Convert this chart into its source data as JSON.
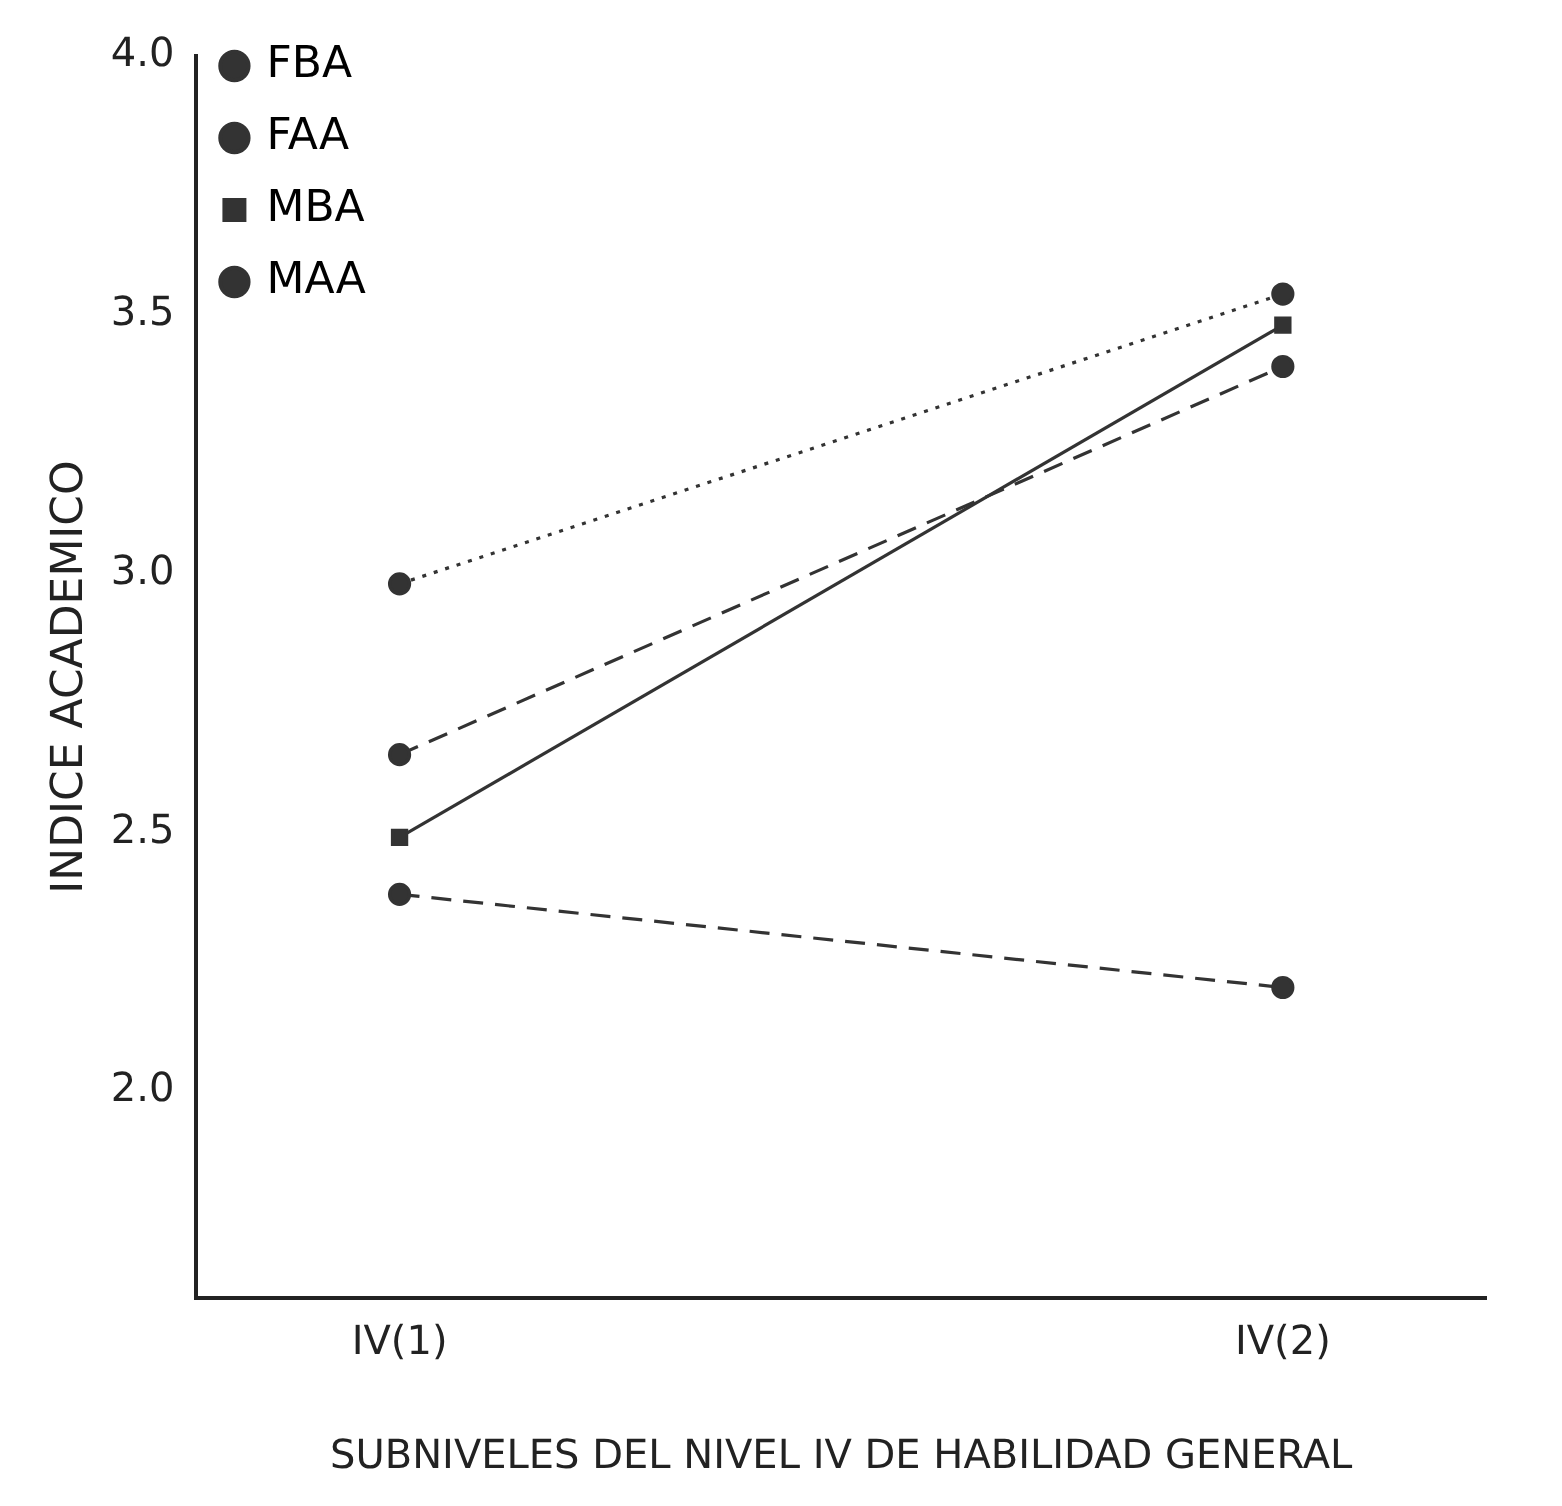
{
  "chart_data": {
    "type": "line",
    "xlabel": "SUBNIVELES DEL NIVEL IV DE HABILIDAD GENERAL",
    "ylabel": "INDICE ACADEMICO",
    "categories": [
      "IV(1)",
      "IV(2)"
    ],
    "series": [
      {
        "name": "FBA",
        "color": "#333333",
        "values": [
          2.98,
          3.54
        ],
        "line_style": "dotted",
        "marker": "circle"
      },
      {
        "name": "FAA",
        "color": "#333333",
        "values": [
          2.65,
          3.4
        ],
        "line_style": "dashed",
        "marker": "circle"
      },
      {
        "name": "MBA",
        "color": "#333333",
        "values": [
          2.49,
          3.48
        ],
        "line_style": "solid",
        "marker": "square"
      },
      {
        "name": "MAA",
        "color": "#333333",
        "values": [
          2.38,
          2.2
        ],
        "line_style": "dashed",
        "marker": "circle"
      }
    ],
    "ylim": [
      1.6,
      4.0
    ],
    "yticks": [
      {
        "value": 2.0,
        "label": "2.0"
      },
      {
        "value": 2.5,
        "label": "2.5"
      },
      {
        "value": 3.0,
        "label": "3.0"
      },
      {
        "value": 3.5,
        "label": "3.5"
      },
      {
        "value": 4.0,
        "label": "4.0"
      }
    ],
    "grid": false,
    "legend": "top left"
  }
}
